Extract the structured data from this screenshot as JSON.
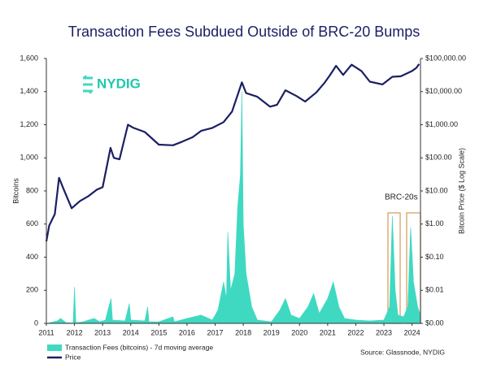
{
  "logo": "NYDIG",
  "chart_data": {
    "type": "area_line",
    "title": "Transaction Fees Subdued Outside of BRC-20 Bumps",
    "ylabel": "Bitcoins",
    "y2label": "Bitcoin Price ($ Log Scale)",
    "annotation": "BRC-20s",
    "source": "Source: Glassnode, NYDIG",
    "xlim": [
      2011,
      2024.3
    ],
    "xticks": [
      2011,
      2012,
      2013,
      2014,
      2015,
      2016,
      2017,
      2018,
      2019,
      2020,
      2021,
      2022,
      2023,
      2024
    ],
    "ylim": [
      0,
      1600
    ],
    "yticks": [
      0,
      200,
      400,
      600,
      800,
      {
        "value": 1000,
        "label": "1,000"
      },
      {
        "value": 1200,
        "label": "1,200"
      },
      {
        "value": 1400,
        "label": "1,400"
      },
      {
        "value": 1600,
        "label": "1,600"
      }
    ],
    "y2lim": [
      0.001,
      100000
    ],
    "y2log": true,
    "y2ticks": [
      {
        "value": 0.001,
        "label": "$0.00"
      },
      {
        "value": 0.01,
        "label": "$0.01"
      },
      {
        "value": 0.1,
        "label": "$0.10"
      },
      {
        "value": 1,
        "label": "$1.00"
      },
      {
        "value": 10,
        "label": "$10.00"
      },
      {
        "value": 100,
        "label": "$100.00"
      },
      {
        "value": 1000,
        "label": "$1,000.00"
      },
      {
        "value": 10000,
        "label": "$10,000.00"
      },
      {
        "value": 100000,
        "label": "$100,000.00"
      }
    ],
    "series": [
      {
        "name": "Transaction Fees (bitcoins) - 7d moving average",
        "color": "#3fd9c1",
        "kind": "area",
        "x": [
          2011.0,
          2011.4,
          2011.5,
          2011.7,
          2011.95,
          2012.0,
          2012.05,
          2012.3,
          2012.5,
          2012.7,
          2012.9,
          2013.1,
          2013.3,
          2013.35,
          2013.8,
          2013.95,
          2014.0,
          2014.5,
          2014.6,
          2014.65,
          2015.0,
          2015.5,
          2015.55,
          2016.0,
          2016.5,
          2016.9,
          2017.1,
          2017.3,
          2017.4,
          2017.45,
          2017.55,
          2017.7,
          2017.8,
          2017.9,
          2017.95,
          2018.0,
          2018.1,
          2018.3,
          2018.5,
          2019.0,
          2019.3,
          2019.5,
          2019.7,
          2020.0,
          2020.3,
          2020.5,
          2020.7,
          2021.0,
          2021.2,
          2021.4,
          2021.6,
          2022.0,
          2022.5,
          2023.0,
          2023.2,
          2023.3,
          2023.4,
          2023.5,
          2023.7,
          2023.85,
          2023.95,
          2024.05,
          2024.2,
          2024.3
        ],
        "values": [
          0,
          15,
          30,
          5,
          2,
          220,
          5,
          10,
          20,
          30,
          10,
          20,
          150,
          20,
          15,
          120,
          20,
          15,
          100,
          10,
          10,
          40,
          10,
          30,
          50,
          20,
          80,
          250,
          150,
          550,
          200,
          300,
          700,
          900,
          1400,
          600,
          300,
          100,
          20,
          10,
          80,
          150,
          50,
          30,
          100,
          180,
          60,
          150,
          250,
          100,
          30,
          20,
          15,
          20,
          100,
          650,
          200,
          50,
          40,
          100,
          580,
          250,
          100,
          50
        ]
      },
      {
        "name": "Price",
        "color": "#1b1f63",
        "kind": "line",
        "axis": "y2",
        "x": [
          2011.0,
          2011.1,
          2011.3,
          2011.45,
          2011.6,
          2011.9,
          2012.2,
          2012.5,
          2012.8,
          2013.0,
          2013.28,
          2013.4,
          2013.6,
          2013.9,
          2014.1,
          2014.5,
          2015.0,
          2015.5,
          2015.8,
          2016.2,
          2016.5,
          2016.9,
          2017.3,
          2017.6,
          2017.95,
          2018.1,
          2018.5,
          2018.95,
          2019.2,
          2019.5,
          2019.9,
          2020.2,
          2020.6,
          2020.9,
          2021.1,
          2021.3,
          2021.55,
          2021.85,
          2022.2,
          2022.5,
          2022.95,
          2023.3,
          2023.6,
          2023.8,
          2024.0,
          2024.15,
          2024.25
        ],
        "values": [
          0.3,
          0.9,
          2,
          25,
          12,
          3,
          5,
          7,
          11,
          13,
          200,
          100,
          90,
          1000,
          800,
          600,
          250,
          240,
          300,
          420,
          650,
          800,
          1200,
          2500,
          19000,
          9000,
          7000,
          3500,
          4000,
          11000,
          7300,
          5000,
          9500,
          19000,
          33000,
          60000,
          32000,
          65000,
          42000,
          20000,
          16500,
          28000,
          29000,
          35000,
          42000,
          52000,
          68000
        ]
      }
    ]
  }
}
